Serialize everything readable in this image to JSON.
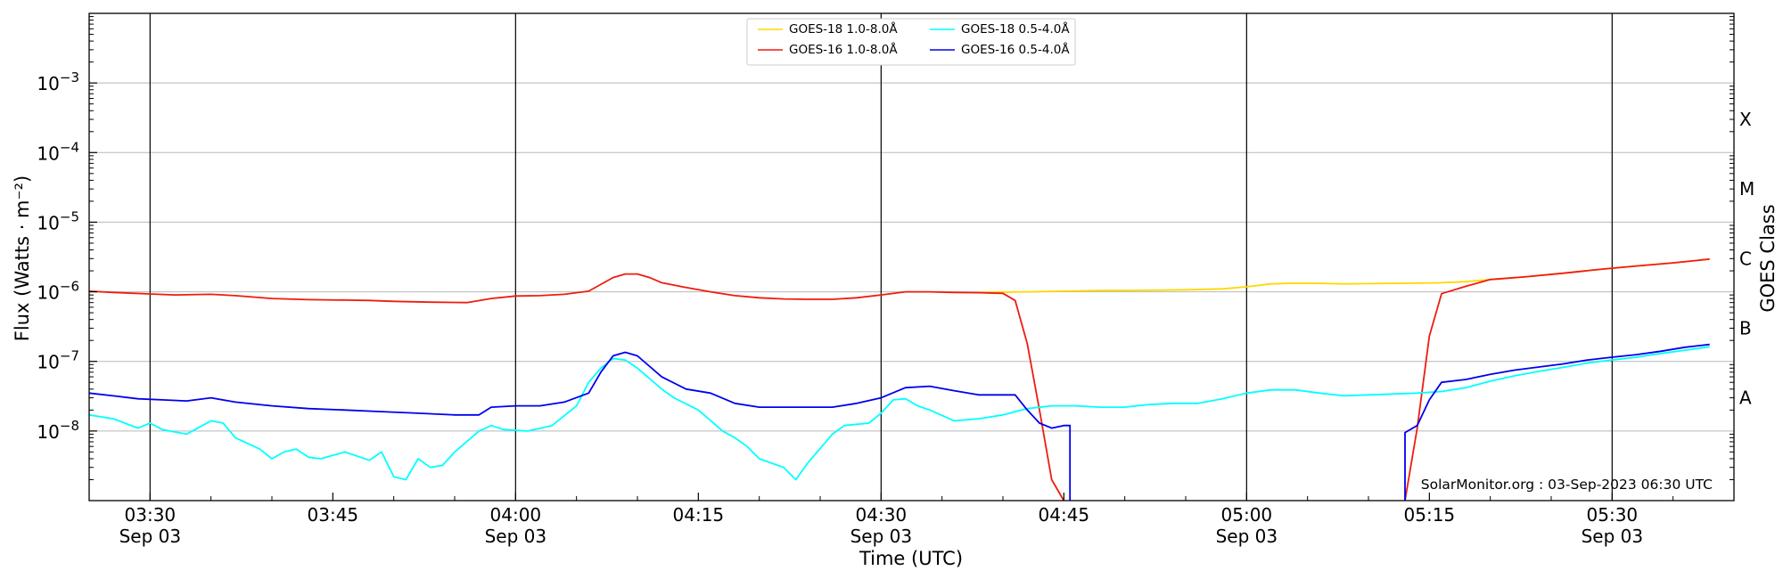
{
  "chart_data": {
    "type": "line",
    "xlabel": "Time (UTC)",
    "ylabel": "Flux (Watts · m⁻²)",
    "ylabel_right": "GOES Class",
    "xlim": [
      "03:25",
      "05:40"
    ],
    "yscale": "log",
    "ylim": [
      1e-09,
      0.01
    ],
    "grid": "horizontal at decades; vertical black lines at half hours",
    "legend_position": "top-center",
    "x_ticks": [
      {
        "time": "03:30",
        "label": "03:30",
        "date": "Sep 03"
      },
      {
        "time": "03:45",
        "label": "03:45",
        "date": ""
      },
      {
        "time": "04:00",
        "label": "04:00",
        "date": "Sep 03"
      },
      {
        "time": "04:15",
        "label": "04:15",
        "date": ""
      },
      {
        "time": "04:30",
        "label": "04:30",
        "date": "Sep 03"
      },
      {
        "time": "04:45",
        "label": "04:45",
        "date": ""
      },
      {
        "time": "05:00",
        "label": "05:00",
        "date": "Sep 03"
      },
      {
        "time": "05:15",
        "label": "05:15",
        "date": ""
      },
      {
        "time": "05:30",
        "label": "05:30",
        "date": "Sep 03"
      }
    ],
    "vlines": [
      "03:30",
      "04:00",
      "04:30",
      "05:00",
      "05:30"
    ],
    "y_ticks": [
      {
        "value": 1e-08,
        "base": "10",
        "exp": "−8"
      },
      {
        "value": 1e-07,
        "base": "10",
        "exp": "−7"
      },
      {
        "value": 1e-06,
        "base": "10",
        "exp": "−6"
      },
      {
        "value": 1e-05,
        "base": "10",
        "exp": "−5"
      },
      {
        "value": 0.0001,
        "base": "10",
        "exp": "−4"
      },
      {
        "value": 0.001,
        "base": "10",
        "exp": "−3"
      }
    ],
    "goes_classes": [
      {
        "label": "A",
        "value": 3e-08
      },
      {
        "label": "B",
        "value": 3e-07
      },
      {
        "label": "C",
        "value": 3e-06
      },
      {
        "label": "M",
        "value": 3e-05
      },
      {
        "label": "X",
        "value": 0.0003
      }
    ],
    "series": [
      {
        "name": "GOES-18 1.0-8.0Å",
        "color": "#ffd700",
        "points": [
          [
            "04:38",
            9.8e-07
          ],
          [
            "04:42",
            1e-06
          ],
          [
            "04:45",
            1.02e-06
          ],
          [
            "04:48",
            1.04e-06
          ],
          [
            "04:52",
            1.05e-06
          ],
          [
            "04:55",
            1.07e-06
          ],
          [
            "04:58",
            1.1e-06
          ],
          [
            "05:00",
            1.18e-06
          ],
          [
            "05:02",
            1.3e-06
          ],
          [
            "05:04",
            1.33e-06
          ],
          [
            "05:06",
            1.32e-06
          ],
          [
            "05:08",
            1.3e-06
          ],
          [
            "05:10",
            1.31e-06
          ],
          [
            "05:12",
            1.32e-06
          ],
          [
            "05:14",
            1.33e-06
          ],
          [
            "05:16",
            1.35e-06
          ],
          [
            "05:18",
            1.4e-06
          ],
          [
            "05:20",
            1.5e-06
          ],
          [
            "05:23",
            1.65e-06
          ],
          [
            "05:26",
            1.85e-06
          ],
          [
            "05:29",
            2.1e-06
          ],
          [
            "05:32",
            2.35e-06
          ],
          [
            "05:35",
            2.6e-06
          ],
          [
            "05:38",
            2.95e-06
          ]
        ]
      },
      {
        "name": "GOES-16 1.0-8.0Å",
        "color": "#ee1c0f",
        "segments": [
          [
            [
              "03:25",
              1.02e-06
            ],
            [
              "03:27",
              9.8e-07
            ],
            [
              "03:30",
              9.3e-07
            ],
            [
              "03:32",
              9e-07
            ],
            [
              "03:35",
              9.2e-07
            ],
            [
              "03:37",
              8.8e-07
            ],
            [
              "03:40",
              8e-07
            ],
            [
              "03:43",
              7.7e-07
            ],
            [
              "03:46",
              7.6e-07
            ],
            [
              "03:48",
              7.5e-07
            ],
            [
              "03:50",
              7.3e-07
            ],
            [
              "03:53",
              7.1e-07
            ],
            [
              "03:56",
              7e-07
            ],
            [
              "03:58",
              8e-07
            ],
            [
              "04:00",
              8.7e-07
            ],
            [
              "04:02",
              8.8e-07
            ],
            [
              "04:04",
              9.2e-07
            ],
            [
              "04:06",
              1.02e-06
            ],
            [
              "04:08",
              1.6e-06
            ],
            [
              "04:09",
              1.8e-06
            ],
            [
              "04:10",
              1.8e-06
            ],
            [
              "04:11",
              1.6e-06
            ],
            [
              "04:12",
              1.35e-06
            ],
            [
              "04:14",
              1.15e-06
            ],
            [
              "04:16",
              1e-06
            ],
            [
              "04:18",
              8.8e-07
            ],
            [
              "04:20",
              8.2e-07
            ],
            [
              "04:22",
              7.9e-07
            ],
            [
              "04:24",
              7.8e-07
            ],
            [
              "04:26",
              7.8e-07
            ],
            [
              "04:28",
              8.2e-07
            ],
            [
              "04:30",
              9e-07
            ],
            [
              "04:32",
              1e-06
            ],
            [
              "04:34",
              1e-06
            ],
            [
              "04:36",
              9.8e-07
            ],
            [
              "04:38",
              9.7e-07
            ],
            [
              "04:40",
              9.5e-07
            ],
            [
              "04:41",
              7.5e-07
            ],
            [
              "04:42",
              1.8e-07
            ],
            [
              "04:43",
              2e-08
            ],
            [
              "04:44",
              2e-09
            ],
            [
              "04:45",
              1e-09
            ]
          ],
          [
            [
              "05:13",
              1e-09
            ],
            [
              "05:14",
              1.1e-08
            ],
            [
              "05:15",
              2.3e-07
            ],
            [
              "05:16",
              9.4e-07
            ],
            [
              "05:18",
              1.2e-06
            ],
            [
              "05:20",
              1.5e-06
            ],
            [
              "05:23",
              1.65e-06
            ],
            [
              "05:26",
              1.85e-06
            ],
            [
              "05:29",
              2.1e-06
            ],
            [
              "05:32",
              2.35e-06
            ],
            [
              "05:35",
              2.6e-06
            ],
            [
              "05:38",
              2.95e-06
            ]
          ]
        ]
      },
      {
        "name": "GOES-18 0.5-4.0Å",
        "color": "#00ffff",
        "points": [
          [
            "03:25",
            1.7e-08
          ],
          [
            "03:27",
            1.5e-08
          ],
          [
            "03:29",
            1.1e-08
          ],
          [
            "03:30",
            1.3e-08
          ],
          [
            "03:31",
            1.05e-08
          ],
          [
            "03:33",
            9e-09
          ],
          [
            "03:35",
            1.4e-08
          ],
          [
            "03:36",
            1.3e-08
          ],
          [
            "03:37",
            8e-09
          ],
          [
            "03:39",
            5.5e-09
          ],
          [
            "03:40",
            4e-09
          ],
          [
            "03:41",
            5e-09
          ],
          [
            "03:42",
            5.5e-09
          ],
          [
            "03:43",
            4.2e-09
          ],
          [
            "03:44",
            4e-09
          ],
          [
            "03:46",
            5e-09
          ],
          [
            "03:48",
            3.8e-09
          ],
          [
            "03:49",
            5e-09
          ],
          [
            "03:50",
            2.2e-09
          ],
          [
            "03:51",
            2e-09
          ],
          [
            "03:52",
            4e-09
          ],
          [
            "03:53",
            3e-09
          ],
          [
            "03:54",
            3.2e-09
          ],
          [
            "03:55",
            5e-09
          ],
          [
            "03:57",
            1e-08
          ],
          [
            "03:58",
            1.2e-08
          ],
          [
            "03:59",
            1.05e-08
          ],
          [
            "04:01",
            1e-08
          ],
          [
            "04:03",
            1.2e-08
          ],
          [
            "04:05",
            2.3e-08
          ],
          [
            "04:06",
            5e-08
          ],
          [
            "04:07",
            8e-08
          ],
          [
            "04:08",
            1.1e-07
          ],
          [
            "04:09",
            1.05e-07
          ],
          [
            "04:10",
            8e-08
          ],
          [
            "04:12",
            4e-08
          ],
          [
            "04:13",
            3e-08
          ],
          [
            "04:15",
            2e-08
          ],
          [
            "04:17",
            1e-08
          ],
          [
            "04:18",
            8e-09
          ],
          [
            "04:19",
            6e-09
          ],
          [
            "04:20",
            4e-09
          ],
          [
            "04:22",
            3e-09
          ],
          [
            "04:23",
            2e-09
          ],
          [
            "04:24",
            3.5e-09
          ],
          [
            "04:26",
            9e-09
          ],
          [
            "04:27",
            1.2e-08
          ],
          [
            "04:29",
            1.3e-08
          ],
          [
            "04:30",
            1.8e-08
          ],
          [
            "04:31",
            2.8e-08
          ],
          [
            "04:32",
            2.9e-08
          ],
          [
            "04:33",
            2.3e-08
          ],
          [
            "04:34",
            2e-08
          ],
          [
            "04:36",
            1.4e-08
          ],
          [
            "04:38",
            1.5e-08
          ],
          [
            "04:40",
            1.7e-08
          ],
          [
            "04:42",
            2.1e-08
          ],
          [
            "04:44",
            2.3e-08
          ],
          [
            "04:46",
            2.3e-08
          ],
          [
            "04:48",
            2.2e-08
          ],
          [
            "04:50",
            2.2e-08
          ],
          [
            "04:52",
            2.4e-08
          ],
          [
            "04:54",
            2.5e-08
          ],
          [
            "04:56",
            2.5e-08
          ],
          [
            "04:58",
            2.9e-08
          ],
          [
            "05:00",
            3.5e-08
          ],
          [
            "05:02",
            3.9e-08
          ],
          [
            "05:04",
            3.9e-08
          ],
          [
            "05:06",
            3.5e-08
          ],
          [
            "05:08",
            3.2e-08
          ],
          [
            "05:10",
            3.3e-08
          ],
          [
            "05:12",
            3.4e-08
          ],
          [
            "05:14",
            3.5e-08
          ],
          [
            "05:16",
            3.7e-08
          ],
          [
            "05:18",
            4.2e-08
          ],
          [
            "05:20",
            5.2e-08
          ],
          [
            "05:22",
            6.2e-08
          ],
          [
            "05:24",
            7.2e-08
          ],
          [
            "05:26",
            8.2e-08
          ],
          [
            "05:28",
            9.5e-08
          ],
          [
            "05:30",
            1.05e-07
          ],
          [
            "05:32",
            1.15e-07
          ],
          [
            "05:34",
            1.3e-07
          ],
          [
            "05:36",
            1.45e-07
          ],
          [
            "05:38",
            1.62e-07
          ]
        ]
      },
      {
        "name": "GOES-16 0.5-4.0Å",
        "color": "#0000ee",
        "segments": [
          [
            [
              "03:25",
              3.5e-08
            ],
            [
              "03:27",
              3.2e-08
            ],
            [
              "03:29",
              2.9e-08
            ],
            [
              "03:31",
              2.8e-08
            ],
            [
              "03:33",
              2.7e-08
            ],
            [
              "03:35",
              3e-08
            ],
            [
              "03:37",
              2.6e-08
            ],
            [
              "03:40",
              2.3e-08
            ],
            [
              "03:43",
              2.1e-08
            ],
            [
              "03:46",
              2e-08
            ],
            [
              "03:49",
              1.9e-08
            ],
            [
              "03:52",
              1.8e-08
            ],
            [
              "03:55",
              1.7e-08
            ],
            [
              "03:57",
              1.7e-08
            ],
            [
              "03:58",
              2.2e-08
            ],
            [
              "04:00",
              2.3e-08
            ],
            [
              "04:02",
              2.3e-08
            ],
            [
              "04:04",
              2.6e-08
            ],
            [
              "04:06",
              3.5e-08
            ],
            [
              "04:07",
              7e-08
            ],
            [
              "04:08",
              1.2e-07
            ],
            [
              "04:09",
              1.35e-07
            ],
            [
              "04:10",
              1.2e-07
            ],
            [
              "04:12",
              6e-08
            ],
            [
              "04:14",
              4e-08
            ],
            [
              "04:16",
              3.5e-08
            ],
            [
              "04:18",
              2.5e-08
            ],
            [
              "04:20",
              2.2e-08
            ],
            [
              "04:23",
              2.2e-08
            ],
            [
              "04:26",
              2.2e-08
            ],
            [
              "04:28",
              2.5e-08
            ],
            [
              "04:30",
              3e-08
            ],
            [
              "04:32",
              4.2e-08
            ],
            [
              "04:34",
              4.4e-08
            ],
            [
              "04:36",
              3.8e-08
            ],
            [
              "04:38",
              3.3e-08
            ],
            [
              "04:40",
              3.3e-08
            ],
            [
              "04:41",
              3.3e-08
            ],
            [
              "04:42",
              2e-08
            ],
            [
              "04:43",
              1.3e-08
            ],
            [
              "04:44",
              1.1e-08
            ],
            [
              "04:45",
              1.2e-08
            ],
            [
              "04:45.5",
              1.2e-08
            ],
            [
              "04:45.5",
              1e-09
            ]
          ],
          [
            [
              "05:13",
              1e-09
            ],
            [
              "05:13",
              9.5e-09
            ],
            [
              "05:14",
              1.2e-08
            ],
            [
              "05:15",
              2.8e-08
            ],
            [
              "05:16",
              5e-08
            ],
            [
              "05:18",
              5.5e-08
            ],
            [
              "05:20",
              6.5e-08
            ],
            [
              "05:22",
              7.5e-08
            ],
            [
              "05:24",
              8.3e-08
            ],
            [
              "05:26",
              9.2e-08
            ],
            [
              "05:28",
              1.05e-07
            ],
            [
              "05:30",
              1.15e-07
            ],
            [
              "05:32",
              1.25e-07
            ],
            [
              "05:34",
              1.4e-07
            ],
            [
              "05:36",
              1.6e-07
            ],
            [
              "05:38",
              1.75e-07
            ]
          ]
        ]
      }
    ],
    "annotation": "SolarMonitor.org : 03-Sep-2023 06:30 UTC"
  }
}
